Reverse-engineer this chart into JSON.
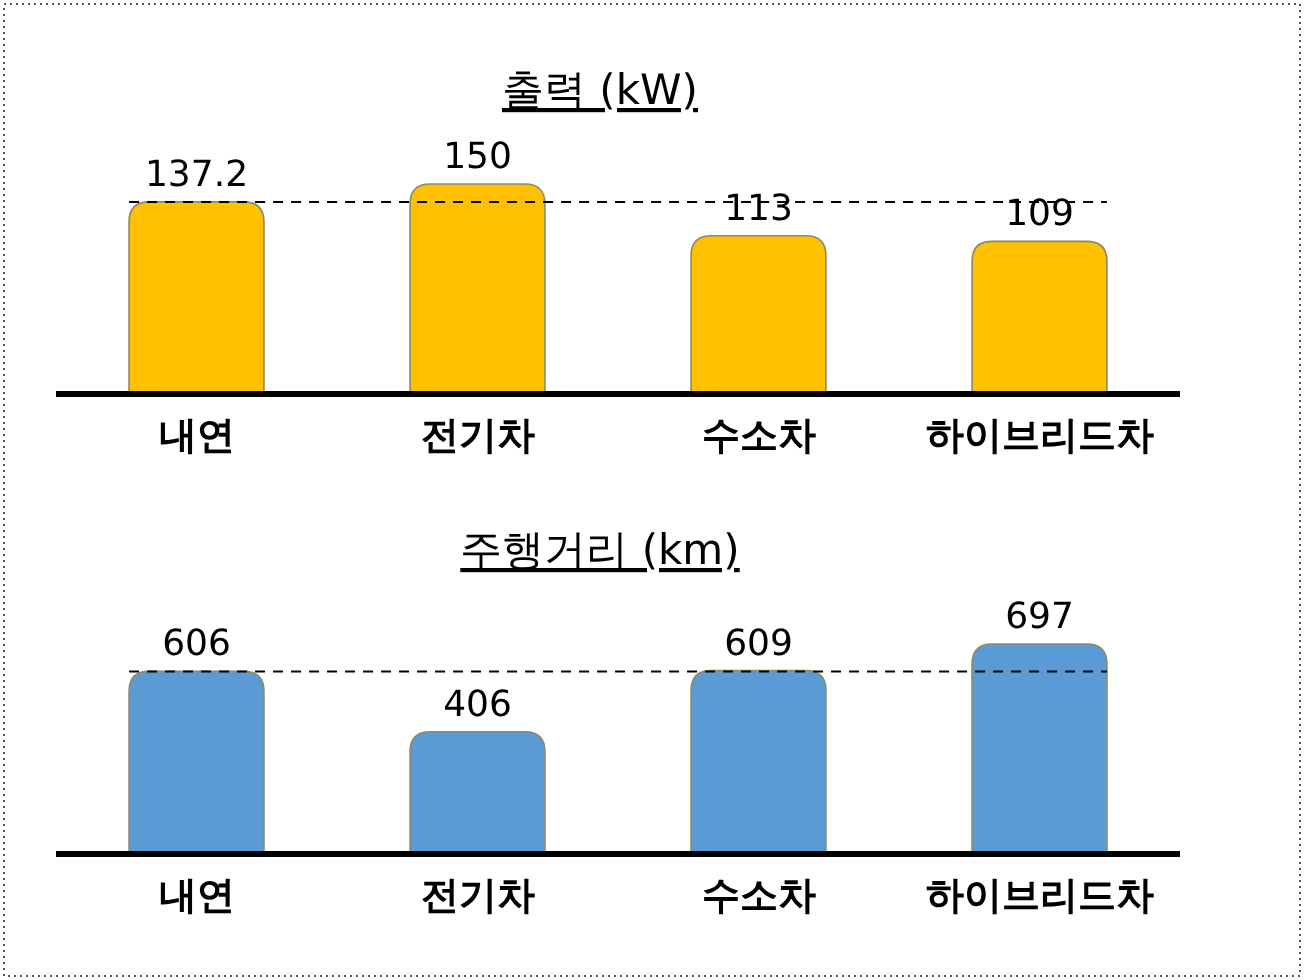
{
  "chart_data": [
    {
      "type": "bar",
      "title": "출력 (kW)",
      "categories": [
        "내연",
        "전기차",
        "수소차",
        "하이브리드차"
      ],
      "values": [
        137.2,
        150,
        113,
        109
      ],
      "color": "#ffc000",
      "data_labels": true,
      "ref_lines": [
        {
          "axis": "y",
          "value": 137.2,
          "line_style": "dashed",
          "color": "#000000"
        }
      ]
    },
    {
      "type": "bar",
      "title": "주행거리 (km)",
      "categories": [
        "내연",
        "전기차",
        "수소차",
        "하이브리드차"
      ],
      "values": [
        606,
        406,
        609,
        697
      ],
      "color": "#5b9bd5",
      "data_labels": true,
      "ref_lines": [
        {
          "axis": "y",
          "value": 606,
          "line_style": "dashed",
          "color": "#000000"
        }
      ]
    }
  ]
}
